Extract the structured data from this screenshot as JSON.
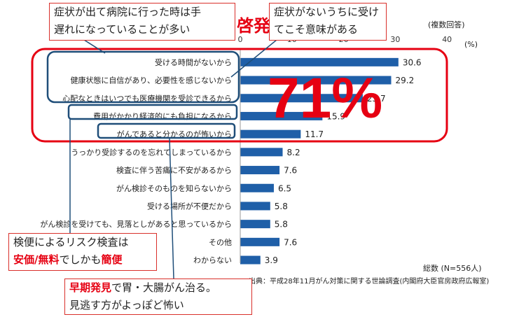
{
  "chart_data": {
    "type": "bar",
    "orientation": "horizontal",
    "categories": [
      "受ける時間がないから",
      "健康状態に自信があり、必要性を感じないから",
      "心配なときはいつでも医療機関を受診できるから",
      "費用がかかり経済的にも負担になるから",
      "がんであると分かるのが怖いから",
      "うっかり受診するのを忘れてしまっているから",
      "検査に伴う苦痛に不安があるから",
      "がん検診そのものを知らないから",
      "受ける場所が不便だから",
      "がん検診を受けても、見落としがあると思っているから",
      "その他",
      "わからない"
    ],
    "values": [
      30.6,
      29.2,
      23.7,
      15.9,
      11.7,
      8.2,
      7.6,
      6.5,
      5.8,
      5.8,
      7.6,
      3.9
    ],
    "xlim": [
      0,
      40
    ],
    "ticks": [
      "0",
      "10",
      "20",
      "30",
      "40"
    ],
    "unit_label": "(%)",
    "note": "(複数回答)",
    "total_label": "総数 (N=556人)",
    "source": "出典：平成28年11月がん対策に関する世論調査(内閣府大臣官房政府広報室)",
    "big_percent": "71%",
    "bar_color": "#1f5fa8",
    "highlight_color": "#e60012"
  },
  "callouts": {
    "top_left_1": "症状が出て病院に行った時は手",
    "top_left_2": "遅れになっていることが多い",
    "keihatsu": "啓発",
    "top_right_1": "症状がないうちに受け",
    "top_right_2": "てこそ意味がある",
    "mid_1": "検便によるリスク検査は",
    "mid_2a": "安価/無料",
    "mid_2b": "でしかも",
    "mid_2c": "簡便",
    "bottom_1a": "早期発見",
    "bottom_1b": "で胃・大腸がん治る。",
    "bottom_2": "見逃す方がよっぽど怖い"
  }
}
